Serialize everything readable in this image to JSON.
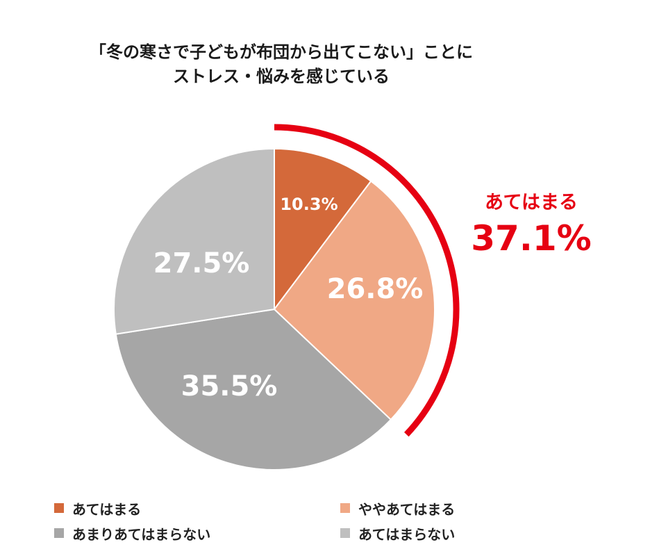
{
  "title": {
    "line1": "「冬の寒さで子どもが布団から出てこない」ことに",
    "line2": "ストレス・悩みを感じている"
  },
  "callout": {
    "label": "あてはまる",
    "value": "37.1%",
    "color": "#e60012"
  },
  "legend": [
    {
      "label": "あてはまる",
      "color": "#d4693a"
    },
    {
      "label": "ややあてはまる",
      "color": "#f0a885"
    },
    {
      "label": "あまりあてはまらない",
      "color": "#a6a6a6"
    },
    {
      "label": "あてはまらない",
      "color": "#bfbfbf"
    }
  ],
  "slices": [
    {
      "label": "10.3%"
    },
    {
      "label": "26.8%"
    },
    {
      "label": "35.5%"
    },
    {
      "label": "27.5%"
    }
  ],
  "chart_data": {
    "type": "pie",
    "title": "「冬の寒さで子どもが布団から出てこない」ことにストレス・悩みを感じている",
    "categories": [
      "あてはまる",
      "ややあてはまる",
      "あまりあてはまらない",
      "あてはまらない"
    ],
    "values": [
      10.3,
      26.8,
      35.5,
      27.5
    ],
    "colors": [
      "#d4693a",
      "#f0a885",
      "#a6a6a6",
      "#bfbfbf"
    ],
    "start_angle": "12 o'clock, clockwise",
    "annotations": [
      {
        "text": "あてはまる 37.1%",
        "spans": [
          "あてはまる",
          "ややあてはまる"
        ],
        "color": "#e60012"
      }
    ],
    "legend_position": "bottom"
  }
}
